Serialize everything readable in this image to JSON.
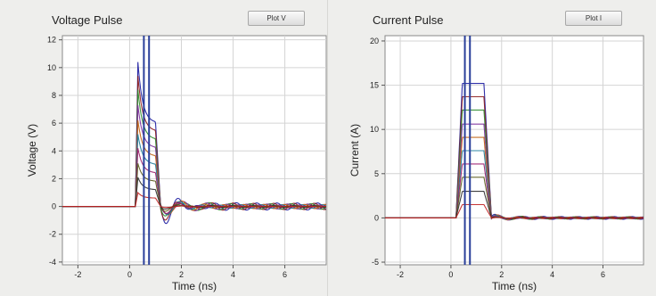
{
  "chart_data": [
    {
      "type": "line",
      "title": "Voltage Pulse",
      "button_label": "Plot V",
      "xlabel": "Time (ns)",
      "ylabel": "Voltage (V)",
      "xlim": [
        -2.6,
        7.6
      ],
      "ylim": [
        -4.2,
        12.3
      ],
      "xticks": [
        -2,
        0,
        2,
        4,
        6
      ],
      "yticks": [
        -4,
        -2,
        0,
        2,
        4,
        6,
        8,
        10,
        12
      ],
      "grid": true,
      "cursor_lines_x": [
        0.55,
        0.75
      ],
      "waveform_family": "stepped voltage pulses",
      "series": [
        {
          "peak": 10.4,
          "plateau": 6.0
        },
        {
          "peak": 9.4,
          "plateau": 5.4
        },
        {
          "peak": 8.4,
          "plateau": 4.8
        },
        {
          "peak": 7.3,
          "plateau": 4.2
        },
        {
          "peak": 6.2,
          "plateau": 3.6
        },
        {
          "peak": 5.2,
          "plateau": 3.0
        },
        {
          "peak": 4.2,
          "plateau": 2.4
        },
        {
          "peak": 3.1,
          "plateau": 1.8
        },
        {
          "peak": 2.1,
          "plateau": 1.2
        },
        {
          "peak": 1.0,
          "plateau": 0.6
        }
      ],
      "colors": [
        "#1a1aa0",
        "#8b1a1a",
        "#2a8a2a",
        "#7a2a9a",
        "#c06010",
        "#1a7a9a",
        "#9a1a6a",
        "#5a5a1a",
        "#2a2a2a",
        "#c02020"
      ]
    },
    {
      "type": "line",
      "title": "Current Pulse",
      "button_label": "Plot I",
      "xlabel": "Time (ns)",
      "ylabel": "Current (A)",
      "xlim": [
        -2.6,
        7.6
      ],
      "ylim": [
        -5.3,
        20.6
      ],
      "xticks": [
        -2,
        0,
        2,
        4,
        6
      ],
      "yticks": [
        -5,
        0,
        5,
        10,
        15,
        20
      ],
      "grid": true,
      "cursor_lines_x": [
        0.55,
        0.75
      ],
      "waveform_family": "stepped current pulses",
      "series": [
        {
          "plateau": 15.2
        },
        {
          "plateau": 13.7
        },
        {
          "plateau": 12.2
        },
        {
          "plateau": 10.6
        },
        {
          "plateau": 9.1
        },
        {
          "plateau": 7.6
        },
        {
          "plateau": 6.1
        },
        {
          "plateau": 4.6
        },
        {
          "plateau": 3.0
        },
        {
          "plateau": 1.5
        }
      ],
      "colors": [
        "#1a1aa0",
        "#8b1a1a",
        "#2a8a2a",
        "#7a2a9a",
        "#c06010",
        "#1a7a9a",
        "#9a1a6a",
        "#5a5a1a",
        "#2a2a2a",
        "#c02020"
      ]
    }
  ]
}
